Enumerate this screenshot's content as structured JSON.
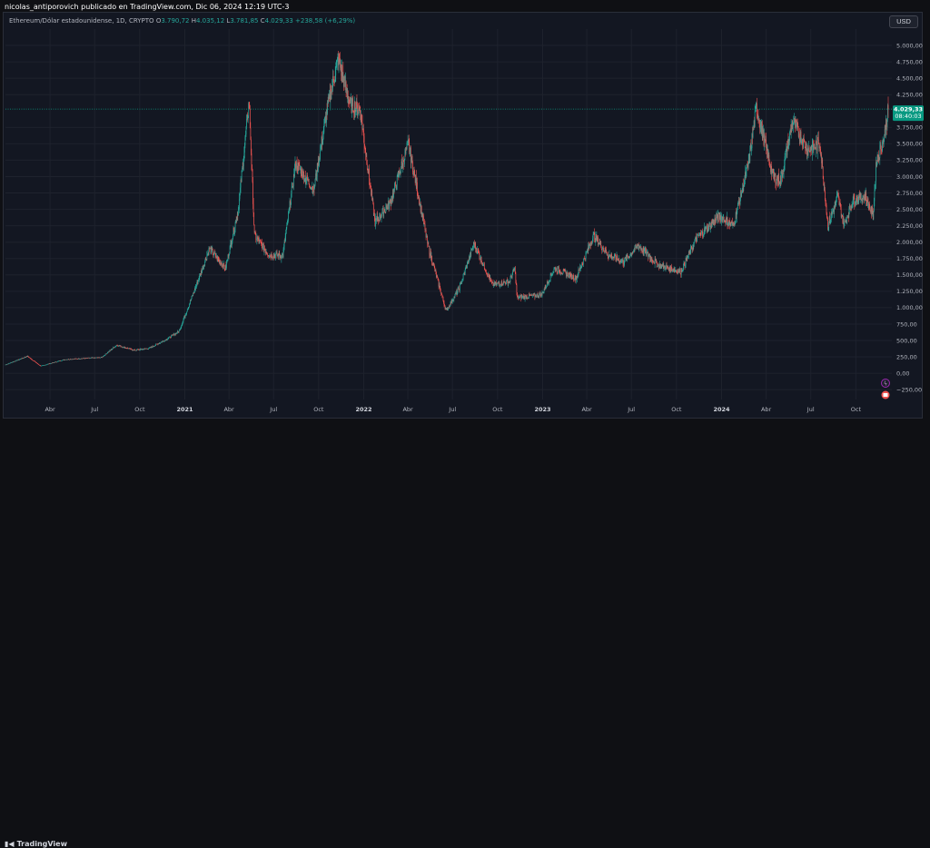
{
  "header": {
    "publisher_text": "nicolas_antiporovich publicado en TradingView.com, Dic 06, 2024 12:19 UTC-3"
  },
  "legend": {
    "symbol": "Ethereum/Dólar estadounidense, 1D, CRYPTO",
    "open_label": "O",
    "open_value": "3.790,72",
    "high_label": "H",
    "high_value": "4.035,12",
    "low_label": "L",
    "low_value": "3.781,85",
    "close_label": "C",
    "close_value": "4.029,33",
    "change": "+238,58 (+6,29%)"
  },
  "currency_button": "USD",
  "price_tag": {
    "value": "4.029,33",
    "countdown": "08:40:03"
  },
  "footer": {
    "brand": "TradingView"
  },
  "colors": {
    "up": "#26a69a",
    "down": "#ef5350",
    "background": "#131722",
    "grid": "#1e222d",
    "price_tag": "#089981"
  },
  "chart_data": {
    "type": "candlestick",
    "instrument": "ETH/USD",
    "timeframe": "1D",
    "ylim": [
      -400,
      5250
    ],
    "y_ticks": [
      {
        "value": 5000,
        "label": "5.000,00"
      },
      {
        "value": 4750,
        "label": "4.750,00"
      },
      {
        "value": 4500,
        "label": "4.500,00"
      },
      {
        "value": 4250,
        "label": "4.250,00"
      },
      {
        "value": 3750,
        "label": "3.750,00"
      },
      {
        "value": 3500,
        "label": "3.500,00"
      },
      {
        "value": 3250,
        "label": "3.250,00"
      },
      {
        "value": 3000,
        "label": "3.000,00"
      },
      {
        "value": 2750,
        "label": "2.750,00"
      },
      {
        "value": 2500,
        "label": "2.500,00"
      },
      {
        "value": 2250,
        "label": "2.250,00"
      },
      {
        "value": 2000,
        "label": "2.000,00"
      },
      {
        "value": 1750,
        "label": "1.750,00"
      },
      {
        "value": 1500,
        "label": "1.500,00"
      },
      {
        "value": 1250,
        "label": "1.250,00"
      },
      {
        "value": 1000,
        "label": "1.000,00"
      },
      {
        "value": 750,
        "label": "750,00"
      },
      {
        "value": 500,
        "label": "500,00"
      },
      {
        "value": 250,
        "label": "250,00"
      },
      {
        "value": 0,
        "label": "0,00"
      },
      {
        "value": -250,
        "label": "−250,00"
      }
    ],
    "x_ticks": [
      {
        "date": "2020-04-01",
        "label": "Abr",
        "bold": false
      },
      {
        "date": "2020-07-01",
        "label": "Jul",
        "bold": false
      },
      {
        "date": "2020-10-01",
        "label": "Oct",
        "bold": false
      },
      {
        "date": "2021-01-01",
        "label": "2021",
        "bold": true
      },
      {
        "date": "2021-04-01",
        "label": "Abr",
        "bold": false
      },
      {
        "date": "2021-07-01",
        "label": "Jul",
        "bold": false
      },
      {
        "date": "2021-10-01",
        "label": "Oct",
        "bold": false
      },
      {
        "date": "2022-01-01",
        "label": "2022",
        "bold": true
      },
      {
        "date": "2022-04-01",
        "label": "Abr",
        "bold": false
      },
      {
        "date": "2022-07-01",
        "label": "Jul",
        "bold": false
      },
      {
        "date": "2022-10-01",
        "label": "Oct",
        "bold": false
      },
      {
        "date": "2023-01-01",
        "label": "2023",
        "bold": true
      },
      {
        "date": "2023-04-01",
        "label": "Abr",
        "bold": false
      },
      {
        "date": "2023-07-01",
        "label": "Jul",
        "bold": false
      },
      {
        "date": "2023-10-01",
        "label": "Oct",
        "bold": false
      },
      {
        "date": "2024-01-01",
        "label": "2024",
        "bold": true
      },
      {
        "date": "2024-04-01",
        "label": "Abr",
        "bold": false
      },
      {
        "date": "2024-07-01",
        "label": "Jul",
        "bold": false
      },
      {
        "date": "2024-10-01",
        "label": "Oct",
        "bold": false
      }
    ],
    "x_range": [
      "2020-01-01",
      "2024-12-06"
    ],
    "last_price": 4029.33,
    "approx_close_path": [
      {
        "date": "2020-01-01",
        "close": 130
      },
      {
        "date": "2020-02-15",
        "close": 260
      },
      {
        "date": "2020-03-13",
        "close": 110
      },
      {
        "date": "2020-05-01",
        "close": 210
      },
      {
        "date": "2020-06-15",
        "close": 230
      },
      {
        "date": "2020-07-15",
        "close": 240
      },
      {
        "date": "2020-08-15",
        "close": 430
      },
      {
        "date": "2020-09-20",
        "close": 350
      },
      {
        "date": "2020-10-20",
        "close": 380
      },
      {
        "date": "2020-11-25",
        "close": 520
      },
      {
        "date": "2020-12-20",
        "close": 640
      },
      {
        "date": "2021-01-20",
        "close": 1250
      },
      {
        "date": "2021-02-20",
        "close": 1900
      },
      {
        "date": "2021-03-25",
        "close": 1600
      },
      {
        "date": "2021-04-20",
        "close": 2500
      },
      {
        "date": "2021-05-12",
        "close": 4150
      },
      {
        "date": "2021-05-23",
        "close": 2100
      },
      {
        "date": "2021-06-22",
        "close": 1800
      },
      {
        "date": "2021-07-20",
        "close": 1800
      },
      {
        "date": "2021-08-15",
        "close": 3200
      },
      {
        "date": "2021-09-21",
        "close": 2800
      },
      {
        "date": "2021-10-20",
        "close": 4100
      },
      {
        "date": "2021-11-10",
        "close": 4800
      },
      {
        "date": "2021-12-04",
        "close": 4100
      },
      {
        "date": "2021-12-25",
        "close": 4000
      },
      {
        "date": "2022-01-24",
        "close": 2300
      },
      {
        "date": "2022-02-24",
        "close": 2600
      },
      {
        "date": "2022-04-02",
        "close": 3500
      },
      {
        "date": "2022-05-12",
        "close": 1950
      },
      {
        "date": "2022-06-18",
        "close": 950
      },
      {
        "date": "2022-07-15",
        "close": 1300
      },
      {
        "date": "2022-08-14",
        "close": 1980
      },
      {
        "date": "2022-09-20",
        "close": 1350
      },
      {
        "date": "2022-10-25",
        "close": 1400
      },
      {
        "date": "2022-11-05",
        "close": 1600
      },
      {
        "date": "2022-11-10",
        "close": 1150
      },
      {
        "date": "2022-12-30",
        "close": 1200
      },
      {
        "date": "2023-01-25",
        "close": 1600
      },
      {
        "date": "2023-03-10",
        "close": 1450
      },
      {
        "date": "2023-04-15",
        "close": 2100
      },
      {
        "date": "2023-05-15",
        "close": 1800
      },
      {
        "date": "2023-06-15",
        "close": 1700
      },
      {
        "date": "2023-07-15",
        "close": 1950
      },
      {
        "date": "2023-08-25",
        "close": 1650
      },
      {
        "date": "2023-10-10",
        "close": 1550
      },
      {
        "date": "2023-11-10",
        "close": 2050
      },
      {
        "date": "2023-12-28",
        "close": 2400
      },
      {
        "date": "2024-01-25",
        "close": 2250
      },
      {
        "date": "2024-02-25",
        "close": 3200
      },
      {
        "date": "2024-03-12",
        "close": 4050
      },
      {
        "date": "2024-04-15",
        "close": 3000
      },
      {
        "date": "2024-05-01",
        "close": 2950
      },
      {
        "date": "2024-05-25",
        "close": 3850
      },
      {
        "date": "2024-06-25",
        "close": 3400
      },
      {
        "date": "2024-07-20",
        "close": 3500
      },
      {
        "date": "2024-08-05",
        "close": 2250
      },
      {
        "date": "2024-08-25",
        "close": 2700
      },
      {
        "date": "2024-09-07",
        "close": 2250
      },
      {
        "date": "2024-09-25",
        "close": 2650
      },
      {
        "date": "2024-10-20",
        "close": 2700
      },
      {
        "date": "2024-11-05",
        "close": 2400
      },
      {
        "date": "2024-11-12",
        "close": 3250
      },
      {
        "date": "2024-11-28",
        "close": 3600
      },
      {
        "date": "2024-12-06",
        "close": 4029.33
      }
    ]
  }
}
